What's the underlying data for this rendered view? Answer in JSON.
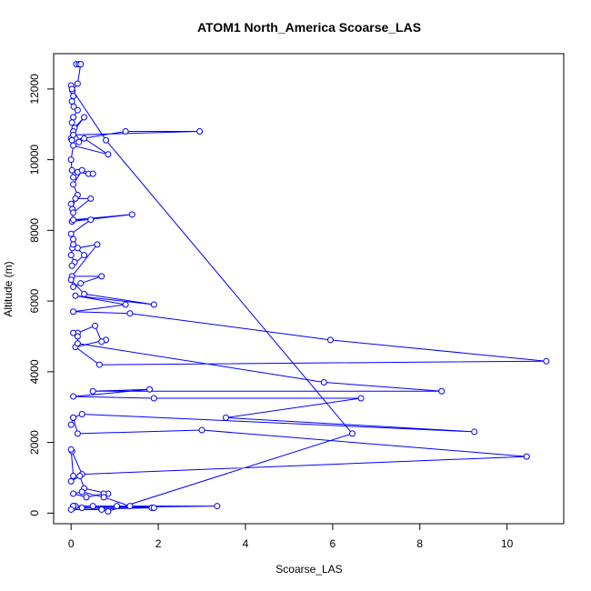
{
  "chart_data": {
    "type": "line",
    "title": "ATOM1 North_America Scoarse_LAS",
    "xlabel": "Scoarse_LAS",
    "ylabel": "Altitude (m)",
    "xlim": [
      -0.4,
      11.3
    ],
    "ylim": [
      -300,
      13000
    ],
    "xticks": [
      0,
      2,
      4,
      6,
      8,
      10
    ],
    "yticks": [
      0,
      2000,
      4000,
      6000,
      8000,
      10000,
      12000
    ],
    "series_color": "#0000ff",
    "marker": "open-circle",
    "series": [
      {
        "name": "Scoarse_LAS",
        "x": [
          0.12,
          0.18,
          0.22,
          0.15,
          0.03,
          0.0,
          0.05,
          0.02,
          0.06,
          0.15,
          0.05,
          0.02,
          0.08,
          0.3,
          0.05,
          0.0,
          0.1,
          0.02,
          1.25,
          2.95,
          0.05,
          0.18,
          0.3,
          0.85,
          0.05,
          0.0,
          0.02,
          0.05,
          0.15,
          0.4,
          0.5,
          0.25,
          0.05,
          0.15,
          0.0,
          0.03,
          0.1,
          0.45,
          0.05,
          0.02,
          1.4,
          0.05,
          0.45,
          0.0,
          0.05,
          0.03,
          0.0,
          0.08,
          0.02,
          0.3,
          0.05,
          0.15,
          0.6,
          0.02,
          0.7,
          0.22,
          0.05,
          0.0,
          0.3,
          1.9,
          0.1,
          1.25,
          0.05,
          1.35,
          5.95,
          10.9,
          0.65,
          0.1,
          0.8,
          0.7,
          0.55,
          0.15,
          0.05,
          0.15,
          0.15,
          5.8,
          8.5,
          0.5,
          1.8,
          0.05,
          1.9,
          6.65,
          3.55,
          9.25,
          0.25,
          0.05,
          0.0,
          0.05,
          0.15,
          3.0,
          10.45,
          0.25,
          0.02,
          0.0,
          0.05,
          0.0,
          0.2,
          0.3,
          0.85,
          0.75,
          0.35,
          0.05,
          0.25,
          0.75,
          1.35,
          0.05,
          0.1,
          1.05,
          1.85,
          0.5,
          0.05,
          0.25,
          3.35,
          0.05,
          1.9,
          0.0,
          0.7,
          0.85,
          6.45,
          0.8,
          0.02
        ],
        "y": [
          12700,
          12700,
          12700,
          12150,
          11950,
          12100,
          11800,
          11650,
          11500,
          11400,
          11200,
          11050,
          10900,
          11200,
          10800,
          10600,
          10600,
          10550,
          10800,
          10800,
          10700,
          10500,
          10600,
          10150,
          10400,
          10000,
          9700,
          9500,
          9650,
          9600,
          9600,
          9700,
          9300,
          9000,
          8750,
          8600,
          8900,
          8900,
          8500,
          8250,
          8450,
          8300,
          8300,
          7900,
          7750,
          7500,
          7300,
          7100,
          7000,
          7300,
          7600,
          7500,
          7600,
          6700,
          6700,
          6500,
          6400,
          6600,
          6200,
          5900,
          6150,
          5900,
          5700,
          5650,
          4900,
          4300,
          4200,
          4700,
          4900,
          4850,
          5300,
          5100,
          5100,
          5000,
          4800,
          3700,
          3450,
          3450,
          3500,
          3300,
          3250,
          3250,
          2700,
          2300,
          2800,
          2700,
          2500,
          2700,
          2250,
          2350,
          1600,
          1100,
          1750,
          1800,
          1050,
          900,
          1050,
          700,
          550,
          550,
          450,
          550,
          600,
          450,
          200,
          200,
          200,
          200,
          150,
          200,
          150,
          150,
          200,
          200,
          150,
          100,
          100,
          50,
          2250,
          10550,
          12000
        ]
      }
    ]
  }
}
